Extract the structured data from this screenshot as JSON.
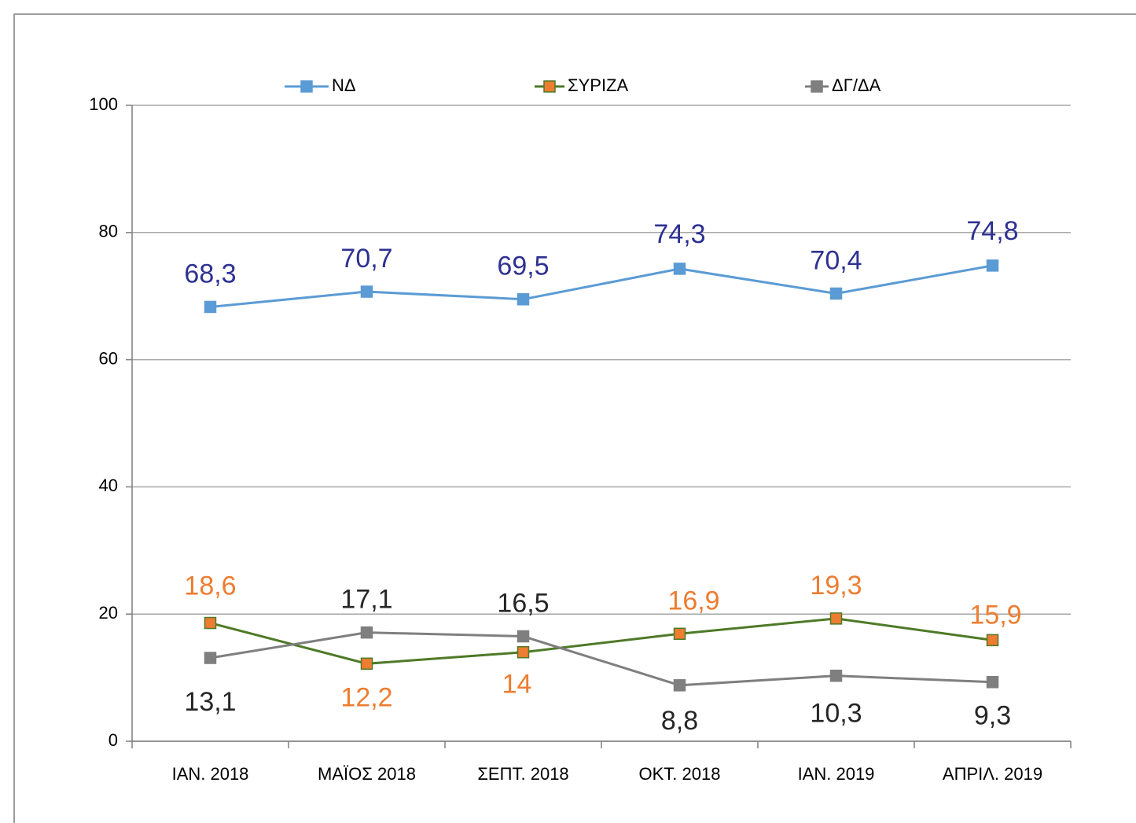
{
  "chart_data": {
    "type": "line",
    "categories": [
      "ΙΑΝ. 2018",
      "ΜΑΪΟΣ 2018",
      "ΣΕΠΤ. 2018",
      "ΟΚΤ. 2018",
      "ΙΑΝ. 2019",
      "ΑΠΡΙΛ. 2019"
    ],
    "series": [
      {
        "name": "ΝΔ",
        "color": "#5b9bd5",
        "marker_color": "#5b9bd5",
        "label_color": "#2e3192",
        "values": [
          68.3,
          70.7,
          69.5,
          74.3,
          70.4,
          74.8
        ],
        "value_labels": [
          "68,3",
          "70,7",
          "69,5",
          "74,3",
          "70,4",
          "74,8"
        ]
      },
      {
        "name": "ΣΥΡΙΖΑ",
        "color": "#4e7a27",
        "marker_color": "#ed7d31",
        "label_color": "#ed7d31",
        "values": [
          18.6,
          12.2,
          14,
          16.9,
          19.3,
          15.9
        ],
        "value_labels": [
          "18,6",
          "12,2",
          "14",
          "16,9",
          "19,3",
          "15,9"
        ]
      },
      {
        "name": "ΔΓ/ΔΑ",
        "color": "#7f7f7f",
        "marker_color": "#7f7f7f",
        "label_color": "#262626",
        "values": [
          13.1,
          17.1,
          16.5,
          8.8,
          10.3,
          9.3
        ],
        "value_labels": [
          "13,1",
          "17,1",
          "16,5",
          "8,8",
          "10,3",
          "9,3"
        ]
      }
    ],
    "ylim": [
      0,
      100
    ],
    "yticks": [
      0,
      20,
      40,
      60,
      80,
      100
    ],
    "grid": true,
    "legend": "top"
  }
}
